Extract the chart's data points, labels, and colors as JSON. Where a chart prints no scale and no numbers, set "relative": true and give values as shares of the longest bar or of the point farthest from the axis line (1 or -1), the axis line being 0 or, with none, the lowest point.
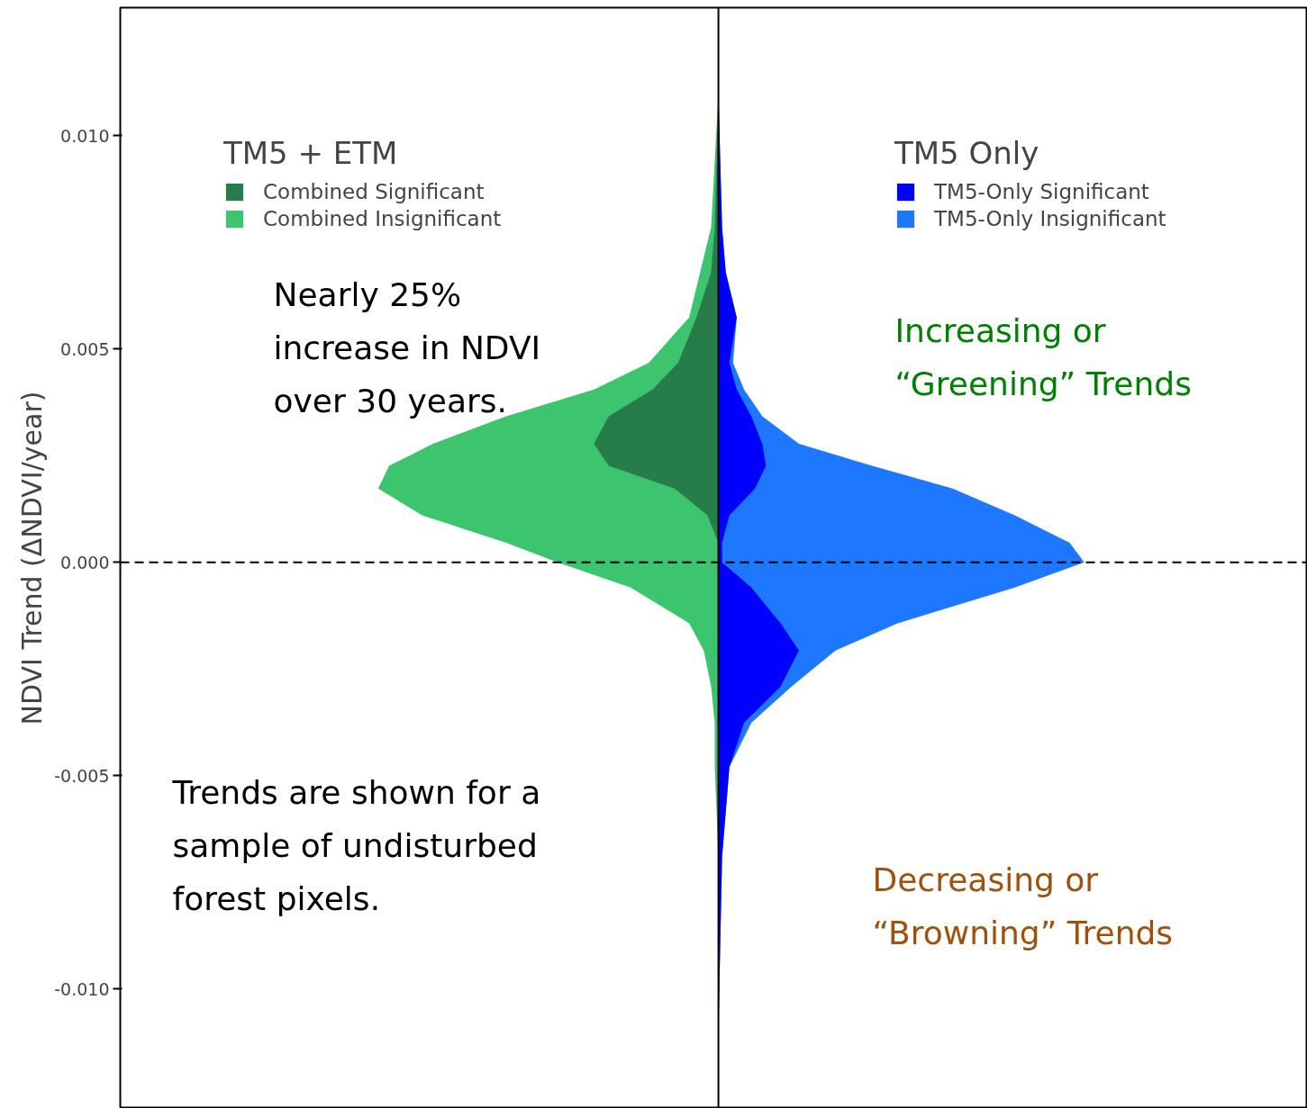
{
  "chart_data": {
    "type": "area",
    "orientation": "horizontal",
    "relative": true,
    "ylabel": "NDVI Trend (ΔNDVI/year)",
    "ylim": [
      -0.0128,
      0.013
    ],
    "yticks": [
      {
        "value": -0.01,
        "label": "-0.010"
      },
      {
        "value": -0.005,
        "label": "-0.005"
      },
      {
        "value": 0,
        "label": "0.000"
      },
      {
        "value": 0.005,
        "label": "0.005"
      },
      {
        "value": 0.01,
        "label": "0.010"
      }
    ],
    "x": [
      0.011,
      0.00785,
      0.0068,
      0.00574,
      0.00468,
      0.00405,
      0.00342,
      0.00278,
      0.00226,
      0.00173,
      0.0011,
      0.00046,
      0,
      -0.00059,
      -0.00143,
      -0.00207,
      -0.00291,
      -0.00376,
      -0.0048,
      -0.0069,
      -0.011
    ],
    "legend_title": [
      "TM5 + ETM",
      "TM5 Only"
    ],
    "legend": "top",
    "series": [
      {
        "name": "Combined Insignificant",
        "color": "#3cc46e",
        "values": [
          0,
          -0.02,
          -0.05,
          -0.08,
          -0.19,
          -0.34,
          -0.58,
          -0.78,
          -0.9,
          -0.93,
          -0.81,
          -0.58,
          -0.44,
          -0.24,
          -0.08,
          -0.04,
          -0.02,
          -0.01,
          -0.01,
          0,
          0
        ]
      },
      {
        "name": "Combined Significant",
        "color": "#267d4a",
        "values": [
          0,
          -0.01,
          -0.02,
          -0.06,
          -0.11,
          -0.18,
          -0.3,
          -0.34,
          -0.3,
          -0.12,
          -0.03,
          0,
          0,
          0,
          0,
          0,
          0,
          0,
          0,
          0,
          0
        ]
      },
      {
        "name": "TM5-Only Insignificant",
        "color": "#1e78ff",
        "values": [
          0,
          0.01,
          0.02,
          0.05,
          0.04,
          0.07,
          0.12,
          0.22,
          0.42,
          0.64,
          0.81,
          0.96,
          1,
          0.81,
          0.49,
          0.32,
          0.2,
          0.09,
          0.03,
          0.01,
          0
        ]
      },
      {
        "name": "TM5-Only Significant",
        "color": "#0000ff",
        "values": [
          0,
          0.01,
          0.02,
          0.05,
          0.03,
          0.05,
          0.09,
          0.12,
          0.13,
          0.1,
          0.03,
          0.01,
          0.01,
          0.09,
          0.17,
          0.22,
          0.17,
          0.07,
          0.03,
          0.01,
          0
        ]
      }
    ],
    "ref_lines": [
      {
        "axis": "y",
        "value": 0,
        "line_style": "dashed",
        "color": "#000000"
      }
    ],
    "annotations": [
      "Nearly 25%\nincrease in NDVI\nover 30 years.",
      "Increasing or\n“Greening” Trends",
      "Decreasing or\n“Browning” Trends",
      "Trends are shown for a\nsample of undisturbed\nforest pixels."
    ]
  }
}
